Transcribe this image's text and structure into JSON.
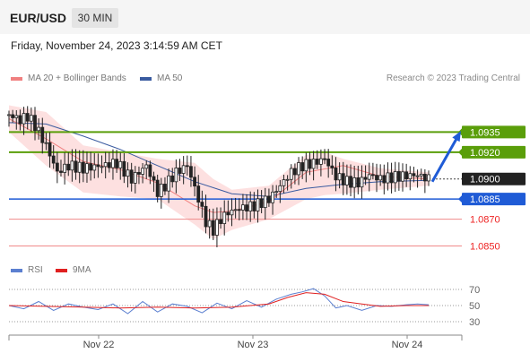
{
  "header": {
    "symbol": "EUR/USD",
    "timeframe": "30 MIN"
  },
  "datetime": "Friday, November 24, 2023 3:14:59 AM CET",
  "legend": {
    "ma20_label": "MA 20 + Bollinger Bands",
    "ma50_label": "MA 50",
    "research": "Research © 2023 Trading Central"
  },
  "rsi_legend": {
    "rsi_label": "RSI",
    "ma_label": "9MA"
  },
  "colors": {
    "green": "#5a9e0a",
    "blue": "#1f5bd6",
    "red": "#ee2222",
    "ma20": "#f08080",
    "ma50": "#3a5ba0",
    "band": "#fde0e0",
    "rsi": "#5b7fd0",
    "rsi_ma": "#e02020",
    "candle": "#222222"
  },
  "chart_data": {
    "type": "candlestick",
    "x_tick_labels": [
      "Nov 22",
      "Nov 23",
      "Nov 24"
    ],
    "last_price": 1.09,
    "price_levels": [
      {
        "value": 1.0935,
        "label": "1.0935",
        "kind": "resistance"
      },
      {
        "value": 1.092,
        "label": "1.0920",
        "kind": "resistance"
      },
      {
        "value": 1.09,
        "label": "1.0900",
        "kind": "last"
      },
      {
        "value": 1.0885,
        "label": "1.0885",
        "kind": "pivot"
      },
      {
        "value": 1.087,
        "label": "1.0870",
        "kind": "support"
      },
      {
        "value": 1.085,
        "label": "1.0850",
        "kind": "support"
      }
    ],
    "close_path": [
      [
        0,
        1.0948
      ],
      [
        6,
        1.0944
      ],
      [
        10,
        1.0947
      ],
      [
        14,
        1.094
      ],
      [
        20,
        1.0925
      ],
      [
        26,
        1.0905
      ],
      [
        32,
        1.091
      ],
      [
        40,
        1.0908
      ],
      [
        50,
        1.091
      ],
      [
        58,
        1.0912
      ],
      [
        66,
        1.09
      ],
      [
        74,
        1.091
      ],
      [
        80,
        1.089
      ],
      [
        84,
        1.0895
      ],
      [
        90,
        1.0905
      ],
      [
        96,
        1.091
      ],
      [
        102,
        1.0885
      ],
      [
        106,
        1.0868
      ],
      [
        110,
        1.0862
      ],
      [
        114,
        1.087
      ],
      [
        118,
        1.0875
      ],
      [
        124,
        1.0878
      ],
      [
        132,
        1.088
      ],
      [
        140,
        1.0885
      ],
      [
        146,
        1.0895
      ],
      [
        152,
        1.0905
      ],
      [
        158,
        1.091
      ],
      [
        164,
        1.0912
      ],
      [
        170,
        1.0915
      ],
      [
        176,
        1.0902
      ],
      [
        182,
        1.0898
      ],
      [
        188,
        1.0897
      ],
      [
        194,
        1.0903
      ],
      [
        200,
        1.09
      ],
      [
        210,
        1.0902
      ],
      [
        220,
        1.0903
      ],
      [
        226,
        1.09
      ]
    ],
    "ma20_path": [
      [
        0,
        1.0945
      ],
      [
        20,
        1.093
      ],
      [
        40,
        1.0913
      ],
      [
        60,
        1.0907
      ],
      [
        80,
        1.0897
      ],
      [
        100,
        1.088
      ],
      [
        110,
        1.0875
      ],
      [
        120,
        1.0876
      ],
      [
        140,
        1.0883
      ],
      [
        160,
        1.0905
      ],
      [
        180,
        1.091
      ],
      [
        200,
        1.0902
      ],
      [
        226,
        1.09
      ]
    ],
    "ma50_path": [
      [
        0,
        1.0942
      ],
      [
        20,
        1.0941
      ],
      [
        40,
        1.0932
      ],
      [
        60,
        1.0922
      ],
      [
        80,
        1.091
      ],
      [
        100,
        1.0898
      ],
      [
        120,
        1.0889
      ],
      [
        140,
        1.0887
      ],
      [
        160,
        1.0893
      ],
      [
        180,
        1.0896
      ],
      [
        200,
        1.0898
      ],
      [
        226,
        1.0899
      ]
    ],
    "band_upper": [
      [
        0,
        1.0955
      ],
      [
        20,
        1.095
      ],
      [
        40,
        1.0925
      ],
      [
        60,
        1.092
      ],
      [
        80,
        1.0915
      ],
      [
        100,
        1.0912
      ],
      [
        110,
        1.09
      ],
      [
        120,
        1.0892
      ],
      [
        140,
        1.0895
      ],
      [
        160,
        1.0918
      ],
      [
        170,
        1.092
      ],
      [
        180,
        1.0915
      ],
      [
        200,
        1.0908
      ],
      [
        226,
        1.0905
      ]
    ],
    "band_lower": [
      [
        0,
        1.0935
      ],
      [
        20,
        1.091
      ],
      [
        40,
        1.089
      ],
      [
        60,
        1.0887
      ],
      [
        80,
        1.0885
      ],
      [
        100,
        1.0866
      ],
      [
        110,
        1.0855
      ],
      [
        120,
        1.0862
      ],
      [
        140,
        1.087
      ],
      [
        160,
        1.0885
      ],
      [
        170,
        1.0888
      ],
      [
        180,
        1.0889
      ],
      [
        200,
        1.0892
      ],
      [
        226,
        1.0895
      ]
    ],
    "forecast_arrow": {
      "from": [
        226,
        1.0898
      ],
      "to": [
        240,
        1.0935
      ]
    },
    "rsi": {
      "levels": [
        70,
        50,
        30
      ],
      "rsi_path": [
        [
          0,
          50
        ],
        [
          8,
          46
        ],
        [
          16,
          55
        ],
        [
          24,
          44
        ],
        [
          32,
          52
        ],
        [
          40,
          48
        ],
        [
          48,
          45
        ],
        [
          56,
          52
        ],
        [
          64,
          40
        ],
        [
          72,
          55
        ],
        [
          80,
          42
        ],
        [
          88,
          52
        ],
        [
          96,
          49
        ],
        [
          104,
          41
        ],
        [
          112,
          53
        ],
        [
          120,
          46
        ],
        [
          128,
          56
        ],
        [
          136,
          48
        ],
        [
          144,
          58
        ],
        [
          152,
          64
        ],
        [
          158,
          67
        ],
        [
          164,
          71
        ],
        [
          170,
          62
        ],
        [
          176,
          47
        ],
        [
          182,
          50
        ],
        [
          190,
          44
        ],
        [
          198,
          50
        ],
        [
          206,
          49
        ],
        [
          214,
          51
        ],
        [
          220,
          52
        ],
        [
          226,
          51
        ]
      ],
      "ma_path": [
        [
          0,
          50
        ],
        [
          20,
          49
        ],
        [
          40,
          48
        ],
        [
          60,
          47
        ],
        [
          80,
          48
        ],
        [
          100,
          47
        ],
        [
          120,
          48
        ],
        [
          140,
          52
        ],
        [
          150,
          60
        ],
        [
          160,
          66
        ],
        [
          170,
          64
        ],
        [
          180,
          55
        ],
        [
          190,
          52
        ],
        [
          200,
          49
        ],
        [
          214,
          50
        ],
        [
          226,
          50
        ]
      ]
    }
  }
}
